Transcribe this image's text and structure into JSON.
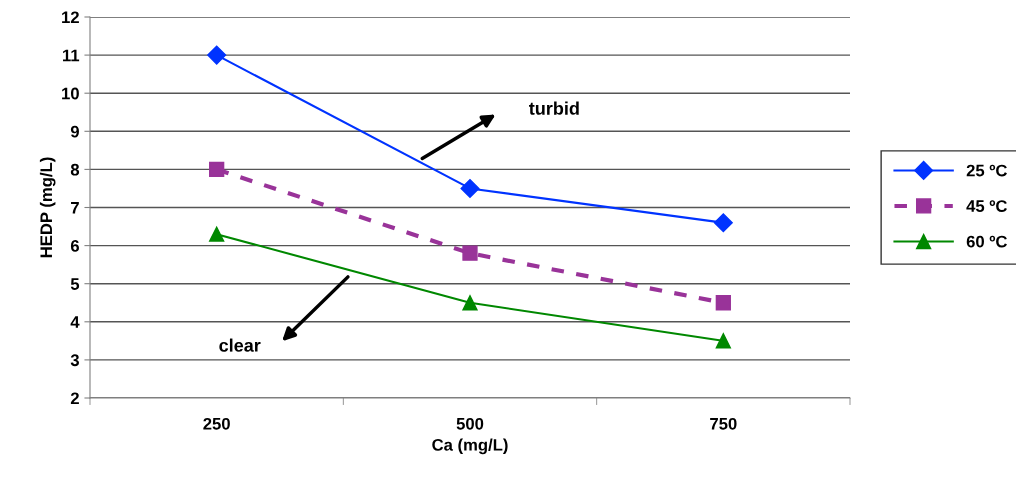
{
  "chart_data": {
    "type": "line",
    "xlabel": "Ca (mg/L)",
    "ylabel": "HEDP (mg/L)",
    "categories": [
      "250",
      "500",
      "750"
    ],
    "series": [
      {
        "name": "25 ºC",
        "color": "#0033ff",
        "marker": "diamond",
        "line_style": "solid",
        "values": [
          11,
          7.5,
          6.6
        ]
      },
      {
        "name": "45 ºC",
        "color": "#993399",
        "marker": "square",
        "line_style": "dashed",
        "values": [
          8,
          5.8,
          4.5
        ]
      },
      {
        "name": "60 ºC",
        "color": "#008800",
        "marker": "triangle",
        "line_style": "solid",
        "values": [
          6.3,
          4.5,
          3.5
        ]
      }
    ],
    "ylim": [
      2,
      12
    ],
    "yticks": [
      2,
      3,
      4,
      5,
      6,
      7,
      8,
      9,
      10,
      11,
      12
    ],
    "grid": "y",
    "legend": "right",
    "annotations": [
      "turbid",
      "clear"
    ]
  }
}
